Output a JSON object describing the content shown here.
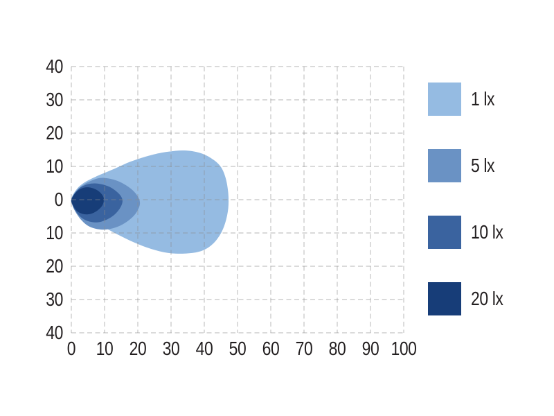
{
  "page": {
    "background_color": "#ffffff",
    "text_color": "#231f20",
    "grid_color": "#8c8c8c"
  },
  "chart_data": {
    "type": "area",
    "subtype": "isolux-beam-pattern",
    "title": "",
    "xlabel": "",
    "ylabel": "",
    "xlim": [
      0,
      100
    ],
    "ylim": [
      -40,
      40
    ],
    "grid": "dashed",
    "legend_position": "right",
    "x_ticks": [
      0,
      10,
      20,
      30,
      40,
      50,
      60,
      70,
      80,
      90,
      100
    ],
    "y_ticks": [
      {
        "value": 40,
        "label": "40"
      },
      {
        "value": 30,
        "label": "30"
      },
      {
        "value": 20,
        "label": "20"
      },
      {
        "value": 10,
        "label": "10"
      },
      {
        "value": 0,
        "label": "0"
      },
      {
        "value": -10,
        "label": "10"
      },
      {
        "value": -20,
        "label": "20"
      },
      {
        "value": -30,
        "label": "30"
      },
      {
        "value": -40,
        "label": "40"
      }
    ],
    "legend": [
      {
        "label": "1 lx",
        "color": "#95bbe2"
      },
      {
        "label": "5 lx",
        "color": "#6a92c4"
      },
      {
        "label": "10 lx",
        "color": "#3a639f"
      },
      {
        "label": "20 lx",
        "color": "#173d78"
      }
    ],
    "series": [
      {
        "name": "1 lx",
        "level_lx": 1,
        "color": "#95bbe2",
        "contour": [
          [
            0,
            0
          ],
          [
            1.5,
            3
          ],
          [
            4,
            5.2
          ],
          [
            8,
            7.2
          ],
          [
            13,
            9.3
          ],
          [
            18,
            11.5
          ],
          [
            24,
            13.4
          ],
          [
            29,
            14.4
          ],
          [
            34,
            14.8
          ],
          [
            38.5,
            14.1
          ],
          [
            42,
            12.5
          ],
          [
            44.8,
            10.1
          ],
          [
            46.4,
            6.6
          ],
          [
            47.2,
            2
          ],
          [
            47.2,
            -2.6
          ],
          [
            46.3,
            -7
          ],
          [
            44.6,
            -10.8
          ],
          [
            42,
            -13.8
          ],
          [
            38.5,
            -15.6
          ],
          [
            34,
            -16.2
          ],
          [
            29,
            -16
          ],
          [
            24,
            -14.8
          ],
          [
            19,
            -12.9
          ],
          [
            14,
            -10.5
          ],
          [
            9,
            -7.8
          ],
          [
            4.5,
            -5.1
          ],
          [
            1.5,
            -2.6
          ]
        ]
      },
      {
        "name": "5 lx",
        "level_lx": 5,
        "color": "#6a92c4",
        "contour": [
          [
            0,
            0
          ],
          [
            1.5,
            2.6
          ],
          [
            3.5,
            4.4
          ],
          [
            6,
            5.7
          ],
          [
            8.5,
            6.5
          ],
          [
            11,
            6.4
          ],
          [
            14,
            5.6
          ],
          [
            16.5,
            4.3
          ],
          [
            18.8,
            2.5
          ],
          [
            20.3,
            0.4
          ],
          [
            20.6,
            -1.5
          ],
          [
            19.6,
            -3.8
          ],
          [
            17.8,
            -5.8
          ],
          [
            15.3,
            -7.5
          ],
          [
            12.5,
            -8.6
          ],
          [
            9.8,
            -9
          ],
          [
            7.2,
            -8.7
          ],
          [
            4.8,
            -7.7
          ],
          [
            2.8,
            -5.9
          ],
          [
            1.2,
            -3.6
          ],
          [
            0.3,
            -1.6
          ]
        ]
      },
      {
        "name": "10 lx",
        "level_lx": 10,
        "color": "#3a639f",
        "contour": [
          [
            0,
            0
          ],
          [
            1.2,
            2.2
          ],
          [
            2.8,
            3.7
          ],
          [
            4.8,
            4.6
          ],
          [
            7,
            4.9
          ],
          [
            9.2,
            4.6
          ],
          [
            11.4,
            3.9
          ],
          [
            13.3,
            2.7
          ],
          [
            14.9,
            1.1
          ],
          [
            15.4,
            -0.5
          ],
          [
            14.8,
            -2.3
          ],
          [
            13.4,
            -4.1
          ],
          [
            11.4,
            -5.6
          ],
          [
            9,
            -6.6
          ],
          [
            6.8,
            -6.8
          ],
          [
            4.6,
            -6.3
          ],
          [
            2.7,
            -5.1
          ],
          [
            1.2,
            -3.3
          ],
          [
            0.3,
            -1.4
          ]
        ]
      },
      {
        "name": "20 lx",
        "level_lx": 20,
        "color": "#173d78",
        "contour": [
          [
            0,
            0
          ],
          [
            1,
            1.7
          ],
          [
            2.2,
            2.9
          ],
          [
            3.7,
            3.6
          ],
          [
            5.3,
            3.7
          ],
          [
            6.9,
            3.3
          ],
          [
            8.3,
            2.5
          ],
          [
            9.4,
            1.3
          ],
          [
            9.8,
            0
          ],
          [
            9.4,
            -1.6
          ],
          [
            8.3,
            -2.9
          ],
          [
            6.8,
            -3.9
          ],
          [
            5,
            -4.4
          ],
          [
            3.2,
            -4.2
          ],
          [
            1.8,
            -3.5
          ],
          [
            0.8,
            -2.2
          ],
          [
            0.2,
            -1
          ]
        ]
      }
    ]
  }
}
